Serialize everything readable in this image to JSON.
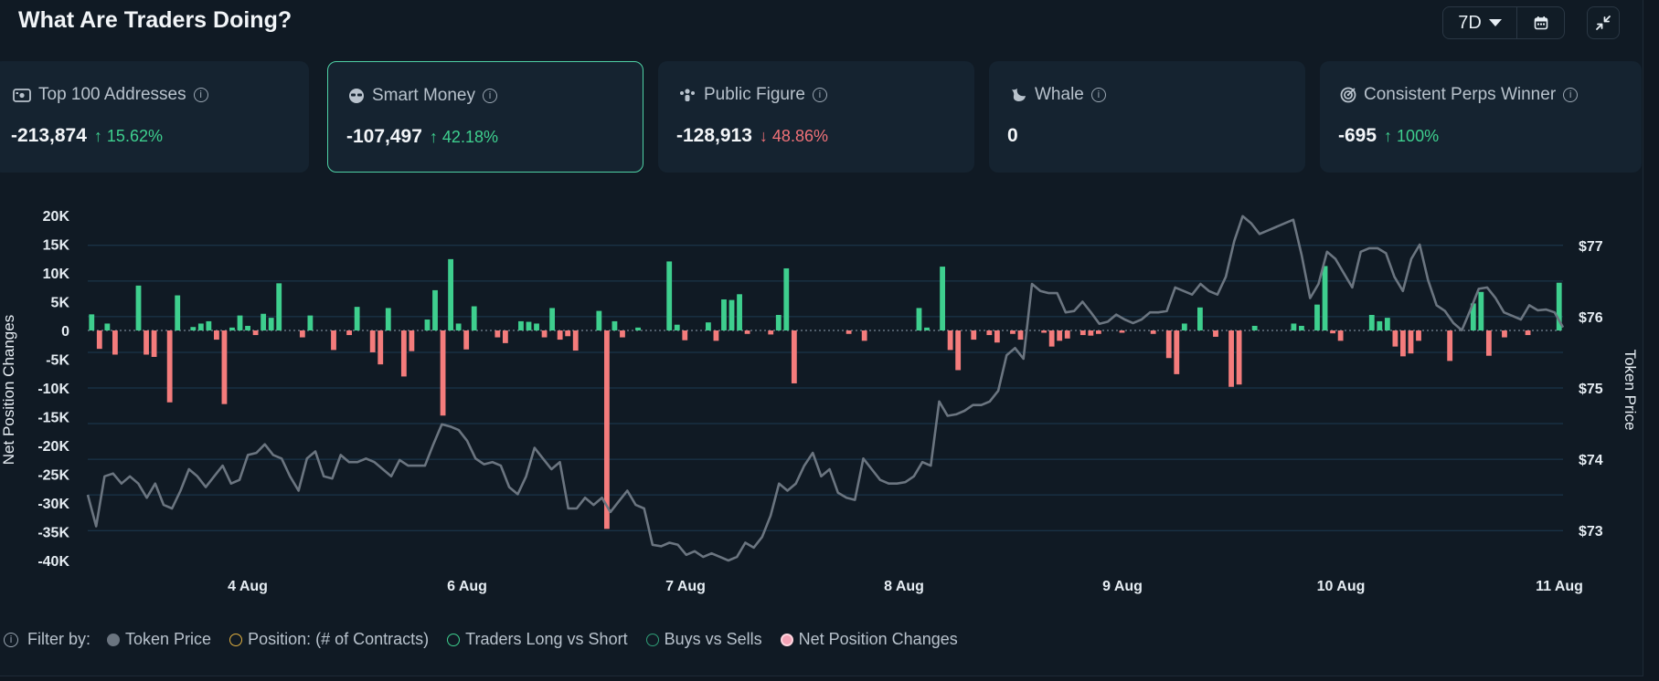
{
  "header": {
    "title": "What Are Traders Doing?",
    "range_label": "7D",
    "calendar_icon": "calendar-icon",
    "collapse_icon": "collapse-icon"
  },
  "cards": [
    {
      "label": "Top 100 Addresses",
      "icon": "wallet-icon",
      "value": "-213,874",
      "change": "15.62%",
      "direction": "up",
      "selected": false
    },
    {
      "label": "Smart Money",
      "icon": "sunglasses-icon",
      "value": "-107,497",
      "change": "42.18%",
      "direction": "up",
      "selected": true
    },
    {
      "label": "Public Figure",
      "icon": "crowd-icon",
      "value": "-128,913",
      "change": "48.86%",
      "direction": "down",
      "selected": false
    },
    {
      "label": "Whale",
      "icon": "whale-icon",
      "value": "0",
      "change": "",
      "direction": "",
      "selected": false
    },
    {
      "label": "Consistent Perps Winner",
      "icon": "target-icon",
      "value": "-695",
      "change": "100%",
      "direction": "up",
      "selected": false
    }
  ],
  "legend": {
    "filter_label": "Filter by:",
    "items": [
      {
        "label": "Token Price",
        "color": "#6b7580",
        "filled": true
      },
      {
        "label": "Position: (# of Contracts)",
        "color": "#e0b040",
        "filled": false
      },
      {
        "label": "Traders Long vs Short",
        "color": "#3ecf8e",
        "filled": false
      },
      {
        "label": "Buys vs Sells",
        "color": "#2f9e77",
        "filled": false
      },
      {
        "label": "Net Position Changes",
        "color": "#f4a3b6",
        "filled": true
      }
    ]
  },
  "colors": {
    "bar_positive": "#3ecf8e",
    "bar_negative": "#f47c7c",
    "price_line": "#6b7580",
    "grid": "#1d3a52"
  },
  "chart_data": {
    "type": "bar+line",
    "left_axis": {
      "title": "Net Position Changes",
      "ticks": [
        "20K",
        "15K",
        "10K",
        "5K",
        "0",
        "-5K",
        "-10K",
        "-15K",
        "-20K",
        "-25K",
        "-30K",
        "-35K",
        "-40K"
      ],
      "range": [
        -40000,
        20000
      ]
    },
    "right_axis": {
      "title": "Token Price",
      "ticks": [
        "$77",
        "$76",
        "$75",
        "$74",
        "$73"
      ],
      "range": [
        72.58,
        77.42
      ]
    },
    "x_axis": {
      "ticks": [
        "4 Aug",
        "6 Aug",
        "7 Aug",
        "8 Aug",
        "9 Aug",
        "10 Aug",
        "11 Aug"
      ],
      "range_days": [
        "2025-08-03 09:00",
        "2025-08-11 00:00"
      ]
    },
    "series": [
      {
        "name": "Net Position Changes",
        "kind": "bar",
        "values": [
          2800,
          -3200,
          1200,
          -4200,
          0,
          0,
          7800,
          -4200,
          -4600,
          0,
          -12500,
          6100,
          0,
          600,
          1200,
          1600,
          -1600,
          -12800,
          500,
          2600,
          800,
          -800,
          2900,
          2200,
          8200,
          0,
          0,
          -1200,
          2600,
          0,
          0,
          -3400,
          0,
          -800,
          4100,
          0,
          -3800,
          -5900,
          3900,
          0,
          -8000,
          -3600,
          0,
          1900,
          7000,
          -14800,
          12400,
          1200,
          -3300,
          4200,
          0,
          0,
          -1200,
          -2200,
          0,
          1600,
          1500,
          1200,
          -1200,
          3900,
          -1600,
          -1000,
          -3500,
          0,
          0,
          3400,
          -34500,
          1600,
          -1200,
          0,
          500,
          0,
          0,
          0,
          12000,
          1000,
          -1700,
          0,
          0,
          1400,
          -1800,
          5400,
          5300,
          6300,
          -600,
          0,
          0,
          -700,
          2700,
          10800,
          -9200,
          0,
          0,
          0,
          0,
          0,
          0,
          -600,
          0,
          -1800,
          0,
          0,
          0,
          0,
          0,
          0,
          3900,
          500,
          0,
          11100,
          -3400,
          -6900,
          0,
          -1600,
          0,
          -800,
          -2100,
          0,
          -600,
          -1600,
          0,
          0,
          -400,
          -2800,
          -1800,
          -1400,
          0,
          -800,
          -900,
          -600,
          0,
          0,
          -400,
          0,
          0,
          0,
          -600,
          0,
          -4800,
          -7600,
          1200,
          0,
          4000,
          0,
          -1100,
          0,
          -9800,
          -9400,
          0,
          800,
          0,
          0,
          0,
          0,
          1200,
          800,
          0,
          4500,
          11200,
          -500,
          -1800,
          0,
          0,
          0,
          2700,
          1600,
          2200,
          -2800,
          -4500,
          -4000,
          -1800,
          0,
          0,
          0,
          -5300,
          0,
          0,
          4700,
          6700,
          -4400,
          0,
          -1200,
          0,
          0,
          -800,
          0,
          0,
          0,
          8300
        ]
      },
      {
        "name": "Token Price",
        "kind": "line",
        "values": [
          73.5,
          73.06,
          73.76,
          73.8,
          73.66,
          73.76,
          73.66,
          73.46,
          73.66,
          73.36,
          73.31,
          73.56,
          73.86,
          73.76,
          73.61,
          73.76,
          73.91,
          73.66,
          73.71,
          74.06,
          74.09,
          74.21,
          74.06,
          74.01,
          73.76,
          73.56,
          74.01,
          74.11,
          73.76,
          73.73,
          74.06,
          73.96,
          73.96,
          74.01,
          73.96,
          73.86,
          73.76,
          73.99,
          73.91,
          73.91,
          73.91,
          74.21,
          74.49,
          74.46,
          74.41,
          74.26,
          74.01,
          73.93,
          73.96,
          73.91,
          73.61,
          73.51,
          73.76,
          74.16,
          74.01,
          73.86,
          73.96,
          73.31,
          73.31,
          73.46,
          73.36,
          73.46,
          73.26,
          73.41,
          73.56,
          73.36,
          73.31,
          72.8,
          72.78,
          72.83,
          72.8,
          72.66,
          72.71,
          72.63,
          72.68,
          72.63,
          72.58,
          72.63,
          72.83,
          72.76,
          72.91,
          73.21,
          73.66,
          73.56,
          73.66,
          73.91,
          74.09,
          73.76,
          73.86,
          73.53,
          73.46,
          73.43,
          74.01,
          73.86,
          73.71,
          73.66,
          73.66,
          73.68,
          73.76,
          73.96,
          73.91,
          74.81,
          74.61,
          74.63,
          74.68,
          74.76,
          74.76,
          74.81,
          74.96,
          75.46,
          75.56,
          75.41,
          76.46,
          76.36,
          76.33,
          76.33,
          76.06,
          76.08,
          76.21,
          76.06,
          75.9,
          75.93,
          76.03,
          75.96,
          75.91,
          75.96,
          76.06,
          76.06,
          76.08,
          76.41,
          76.36,
          76.31,
          76.46,
          76.36,
          76.31,
          76.56,
          77.06,
          77.41,
          77.31,
          77.16,
          77.21,
          77.26,
          77.31,
          77.36,
          76.86,
          76.26,
          76.46,
          76.91,
          76.81,
          76.61,
          76.41,
          76.91,
          76.96,
          76.96,
          76.89,
          76.56,
          76.36,
          76.81,
          77.01,
          76.51,
          76.16,
          76.08,
          75.91,
          75.81,
          76.09,
          76.39,
          76.41,
          76.26,
          76.06,
          76.01,
          75.96,
          76.16,
          76.09,
          76.1,
          76.06,
          75.85
        ]
      }
    ]
  }
}
